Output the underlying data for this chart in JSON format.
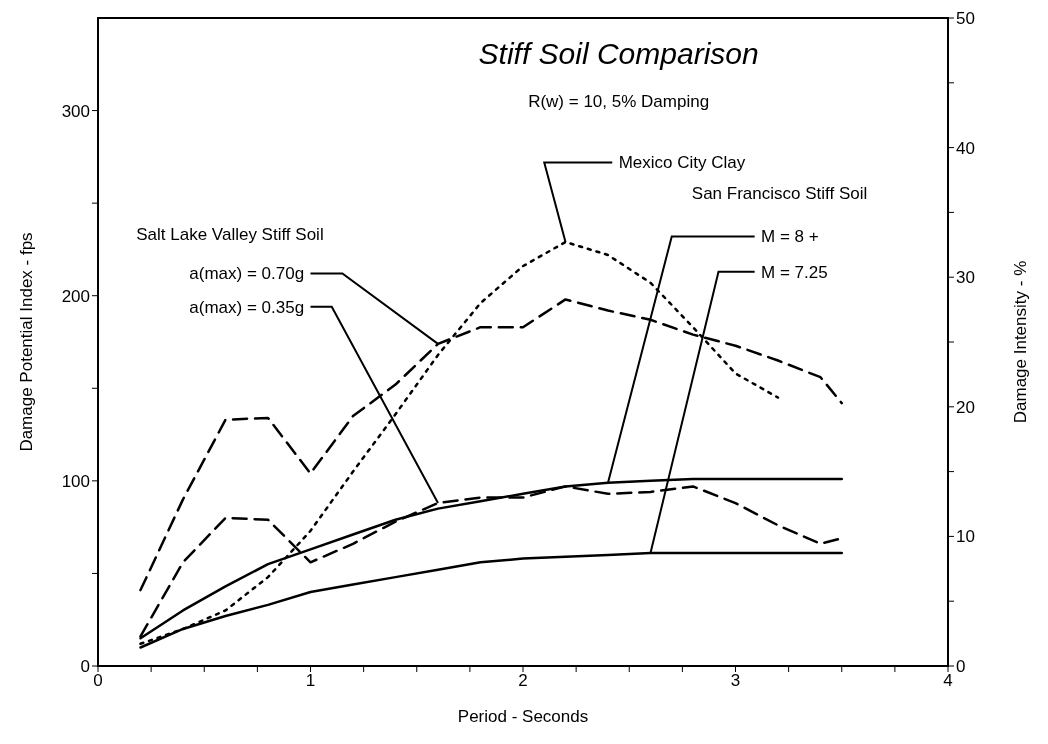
{
  "chart_data": {
    "type": "line",
    "title": "Stiff Soil Comparison",
    "subtitle": "R(w) = 10, 5% Damping",
    "xlabel": "Period - Seconds",
    "ylabel": "Damage Potential Index - fps",
    "y2label": "Damage Intensity - %",
    "annotations": [
      "Salt Lake Valley Stiff Soil",
      "San Francisco Stiff Soil"
    ],
    "x": [
      0.2,
      0.4,
      0.6,
      0.8,
      1.0,
      1.2,
      1.4,
      1.6,
      1.8,
      2.0,
      2.2,
      2.4,
      2.6,
      2.8,
      3.0,
      3.2,
      3.4,
      3.5
    ],
    "series": [
      {
        "name": "a(max) = 0.70g",
        "color": "#000000",
        "line_style": "dashed",
        "values": [
          41,
          90,
          133,
          134,
          104,
          135,
          152,
          174,
          183,
          183,
          198,
          192,
          187,
          179,
          173,
          165,
          156,
          142
        ]
      },
      {
        "name": "a(max) = 0.35g",
        "color": "#000000",
        "line_style": "dashed",
        "values": [
          16,
          56,
          80,
          79,
          56,
          66,
          78,
          88,
          91,
          91,
          97,
          93,
          94,
          97,
          88,
          76,
          66,
          69
        ]
      },
      {
        "name": "Mexico City Clay",
        "color": "#000000",
        "line_style": "dotted",
        "values": [
          12,
          20,
          30,
          48,
          73,
          105,
          136,
          168,
          196,
          216,
          229,
          222,
          207,
          183,
          158,
          145,
          null,
          null
        ]
      },
      {
        "name": "M  = 8 +",
        "color": "#000000",
        "line_style": "solid",
        "values": [
          15,
          30,
          43,
          55,
          63,
          71,
          79,
          85,
          89,
          93,
          97,
          99,
          100,
          101,
          101,
          101,
          101,
          101
        ]
      },
      {
        "name": "M = 7.25",
        "color": "#000000",
        "line_style": "solid",
        "values": [
          10,
          20,
          27,
          33,
          40,
          44,
          48,
          52,
          56,
          58,
          59,
          60,
          61,
          61,
          61,
          61,
          61,
          61
        ]
      }
    ],
    "xlim": [
      0,
      4
    ],
    "xticks": [
      0,
      {
        "value": 0.25,
        "label": null
      },
      {
        "value": 0.5,
        "label": null
      },
      {
        "value": 0.75,
        "label": null
      },
      1,
      {
        "value": 1.25,
        "label": null
      },
      {
        "value": 1.5,
        "label": null
      },
      {
        "value": 1.75,
        "label": null
      },
      2,
      {
        "value": 2.25,
        "label": null
      },
      {
        "value": 2.5,
        "label": null
      },
      {
        "value": 2.75,
        "label": null
      },
      3,
      {
        "value": 3.25,
        "label": null
      },
      {
        "value": 3.5,
        "label": null
      },
      {
        "value": 3.75,
        "label": null
      },
      4
    ],
    "ylim": [
      0,
      350
    ],
    "yticks": [
      0,
      {
        "value": 50,
        "label": null
      },
      100,
      {
        "value": 150,
        "label": null
      },
      200,
      {
        "value": 250,
        "label": null
      },
      300
    ],
    "y2lim": [
      0,
      50
    ],
    "y2ticks": [
      0,
      {
        "value": 5,
        "label": null
      },
      10,
      {
        "value": 15,
        "label": null
      },
      20,
      {
        "value": 25,
        "label": null
      },
      30,
      {
        "value": 35,
        "label": null
      },
      40,
      {
        "value": 45,
        "label": null
      },
      50
    ],
    "marker": "none"
  }
}
